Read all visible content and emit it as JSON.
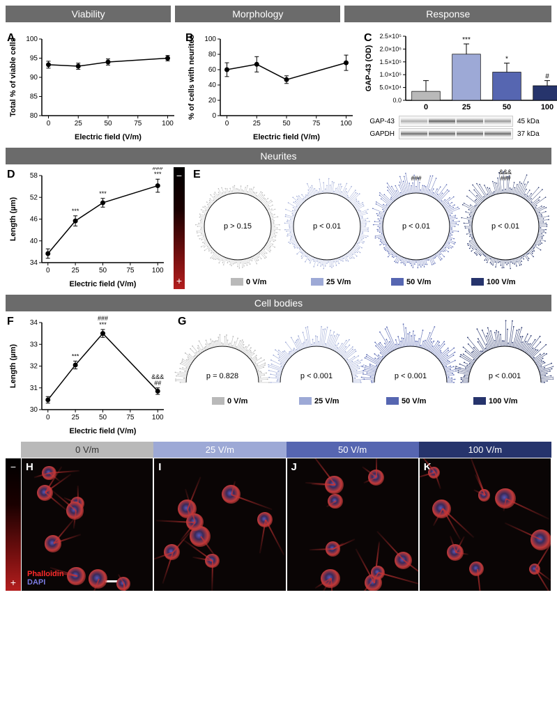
{
  "headers": {
    "viability": "Viability",
    "morphology": "Morphology",
    "response": "Response",
    "neurites": "Neurites",
    "cellbodies": "Cell bodies"
  },
  "panels": {
    "A": "A",
    "B": "B",
    "C": "C",
    "D": "D",
    "E": "E",
    "F": "F",
    "G": "G",
    "H": "H",
    "I": "I",
    "J": "J",
    "K": "K"
  },
  "axis": {
    "ef": "Electric field (V/m)",
    "ef_ticks": [
      0,
      25,
      50,
      75,
      100
    ]
  },
  "colors": {
    "v0": "#b9b9b9",
    "v25": "#9da9d6",
    "v50": "#5666b1",
    "v100": "#26346c",
    "grid": "#d0d0d0",
    "axis": "#000000",
    "tab": "#6b6b6b",
    "black": "#000000",
    "red_grad_top": "#000000",
    "red_grad_bot": "#b31e1e",
    "phalloidin": "#ff2a2a",
    "dapi": "#7a7ae0"
  },
  "panelA": {
    "ylabel": "Total % of viable cells",
    "ylim": [
      80,
      100
    ],
    "yticks": [
      80,
      85,
      90,
      95,
      100
    ],
    "x": [
      0,
      25,
      50,
      100
    ],
    "y": [
      93.3,
      92.9,
      94.0,
      95.0
    ],
    "err": [
      0.9,
      0.8,
      0.8,
      0.7
    ]
  },
  "panelB": {
    "ylabel": "% of cells with neurites",
    "ylim": [
      0,
      100
    ],
    "yticks": [
      0,
      20,
      40,
      60,
      80,
      100
    ],
    "x": [
      0,
      25,
      50,
      100
    ],
    "y": [
      60,
      67,
      47,
      69
    ],
    "err": [
      9,
      10,
      5,
      10
    ]
  },
  "panelC": {
    "ylabel": "GAP-43 (OD)",
    "ylim": [
      0,
      250000
    ],
    "yticklabels": [
      "0.0",
      "5.0×10⁴",
      "1.0×10⁵",
      "1.5×10⁵",
      "2.0×10⁵",
      "2.5×10⁵"
    ],
    "ytickvals": [
      0,
      50000,
      100000,
      150000,
      200000,
      250000
    ],
    "cats": [
      "0",
      "25",
      "50",
      "100"
    ],
    "vals": [
      35000,
      180000,
      110000,
      57000
    ],
    "err": [
      42000,
      40000,
      35000,
      20000
    ],
    "sig": [
      "",
      "***",
      "*",
      "#"
    ],
    "blot_labels": {
      "g": "GAP-43",
      "c": "GAPDH",
      "m1": "45 kDa",
      "m2": "37 kDa"
    },
    "blot_intensity_gap43": [
      0.25,
      0.95,
      0.75,
      0.45
    ],
    "blot_intensity_gapdh": [
      0.85,
      0.9,
      0.9,
      0.88
    ]
  },
  "panelD": {
    "ylabel": "Length (µm)",
    "ylim": [
      34,
      58
    ],
    "yticks": [
      34,
      40,
      46,
      52,
      58
    ],
    "x": [
      0,
      25,
      50,
      100
    ],
    "y": [
      36.5,
      45.5,
      50.5,
      55.2
    ],
    "err": [
      1.3,
      1.4,
      1.2,
      1.8
    ],
    "sig": [
      "",
      "***",
      "***",
      "& ### ***"
    ]
  },
  "panelE": {
    "pvals": [
      "p > 0.15",
      "p < 0.01",
      "p < 0.01",
      "p < 0.01"
    ],
    "sig": [
      "",
      "",
      "###",
      "&&& ###"
    ],
    "bias": [
      0,
      0.25,
      0.55,
      0.7
    ],
    "legend": [
      "0 V/m",
      "25 V/m",
      "50 V/m",
      "100 V/m"
    ]
  },
  "panelF": {
    "ylabel": "Length (µm)",
    "ylim": [
      30,
      34
    ],
    "yticks": [
      30,
      31,
      32,
      33,
      34
    ],
    "x": [
      0,
      25,
      50,
      100
    ],
    "y": [
      30.45,
      32.05,
      33.5,
      30.85
    ],
    "err": [
      0.15,
      0.18,
      0.18,
      0.15
    ],
    "sig": [
      "",
      "***",
      "### ***",
      "&&& ##"
    ]
  },
  "panelG": {
    "pvals": [
      "p = 0.828",
      "p < 0.001",
      "p < 0.001",
      "p < 0.001"
    ],
    "bias": [
      0,
      0.35,
      0.55,
      0.55
    ],
    "legend": [
      "0 V/m",
      "25 V/m",
      "50 V/m",
      "100 V/m"
    ]
  },
  "micrographs": {
    "labels": [
      "0 V/m",
      "25 V/m",
      "50 V/m",
      "100 V/m"
    ],
    "stains": {
      "p": "Phalloidin",
      "d": "DAPI"
    }
  },
  "minus": "−",
  "plus": "+"
}
